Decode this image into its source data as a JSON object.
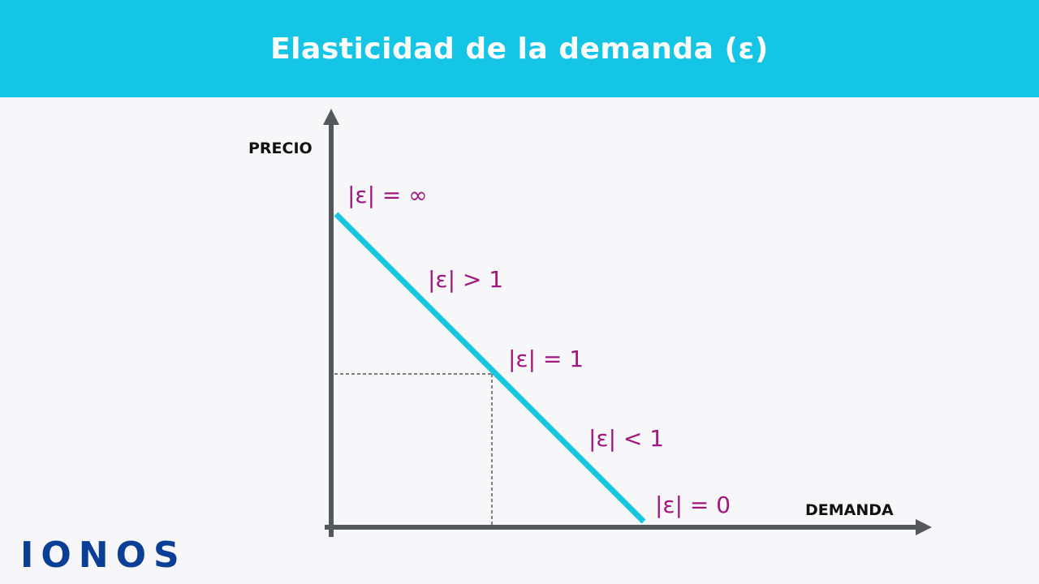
{
  "title": "Elasticidad de la demanda (ε)",
  "axes": {
    "y_label": "PRECIO",
    "x_label": "DEMANDA"
  },
  "labels": [
    "|ε| = ∞",
    "|ε| > 1",
    "|ε| = 1",
    "|ε| < 1",
    "|ε| = 0"
  ],
  "logo": "IONOS",
  "colors": {
    "header": "#14c5e6",
    "demand_line": "#18c6e0",
    "labels": "#a0177f",
    "axes": "#55575a",
    "logo": "#0b3f97"
  }
}
